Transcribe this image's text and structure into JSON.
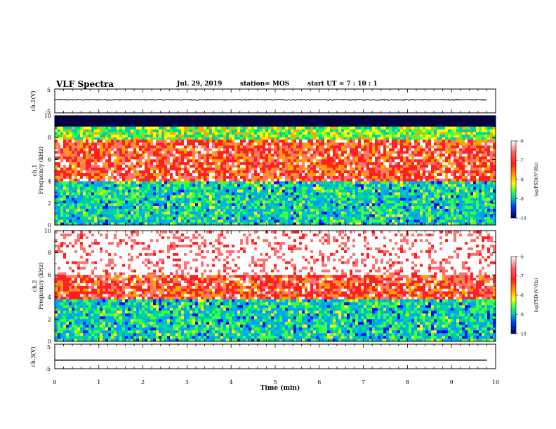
{
  "header": {
    "title": "VLF Spectra",
    "date": "Jul. 29, 2019",
    "station": "station= MOS",
    "start": "start UT =  7 : 10 : 1"
  },
  "panels": {
    "ch1": {
      "ylabel": "ch.1(V)",
      "ticks": [
        "5",
        "-5"
      ]
    },
    "spec1": {
      "ylabel_top": "ch.1",
      "ylabel": "Frequency (kHz)",
      "ticks": [
        "0",
        "2",
        "4",
        "6",
        "8",
        "10"
      ]
    },
    "spec2": {
      "ylabel_top": "ch.2",
      "ylabel": "Frequency (kHz)",
      "ticks": [
        "0",
        "2",
        "4",
        "6",
        "8",
        "10"
      ]
    },
    "ch3": {
      "ylabel": "ch.3(V)",
      "ticks": [
        "5",
        "-5"
      ]
    }
  },
  "colorbar": {
    "label": "log(PSD)(V²/Hz)",
    "ticks": [
      "-6",
      "-7",
      "-8",
      "-9",
      "-10"
    ],
    "colors": [
      "#ffffff",
      "#ff4040",
      "#ff2020",
      "#ffa500",
      "#ffff00",
      "#40ff40",
      "#00c0a0",
      "#00c0ff",
      "#0000ff",
      "#000060"
    ]
  },
  "xaxis": {
    "label": "Time (min)",
    "ticks": [
      "0",
      "1",
      "2",
      "3",
      "4",
      "5",
      "6",
      "7",
      "8",
      "9",
      "10"
    ]
  },
  "chart_data": [
    {
      "type": "line",
      "title": "",
      "ylabel": "ch.1(V)",
      "xlabel": "",
      "xlim": [
        0,
        10
      ],
      "ylim": [
        -5,
        5
      ],
      "series": [
        {
          "x": [
            0,
            9.8
          ],
          "values": [
            0.5,
            0.5
          ]
        }
      ]
    },
    {
      "type": "heatmap",
      "title": "",
      "ylabel": "ch.1 Frequency (kHz)",
      "xlim": [
        0,
        10
      ],
      "ylim": [
        0,
        10
      ],
      "bands": [
        {
          "f_from": 9.0,
          "f_to": 10.0,
          "log_psd": -10
        },
        {
          "f_from": 7.8,
          "f_to": 9.0,
          "log_psd": -8
        },
        {
          "f_from": 4.0,
          "f_to": 7.8,
          "log_psd": -6.8
        },
        {
          "f_from": 0.0,
          "f_to": 4.0,
          "log_psd": -8.5
        }
      ]
    },
    {
      "type": "heatmap",
      "title": "",
      "ylabel": "ch.2 Frequency (kHz)",
      "xlim": [
        0,
        10
      ],
      "ylim": [
        0,
        10
      ],
      "bands": [
        {
          "f_from": 6.0,
          "f_to": 10.0,
          "log_psd": -6
        },
        {
          "f_from": 3.8,
          "f_to": 6.0,
          "log_psd": -6.8
        },
        {
          "f_from": 0.0,
          "f_to": 3.8,
          "log_psd": -8.5
        }
      ]
    },
    {
      "type": "line",
      "title": "",
      "ylabel": "ch.3(V)",
      "xlabel": "Time (min)",
      "xlim": [
        0,
        10
      ],
      "ylim": [
        -5,
        5
      ],
      "series": [
        {
          "x": [
            0,
            9.8
          ],
          "values": [
            -1.5,
            -1.5
          ]
        }
      ]
    }
  ]
}
